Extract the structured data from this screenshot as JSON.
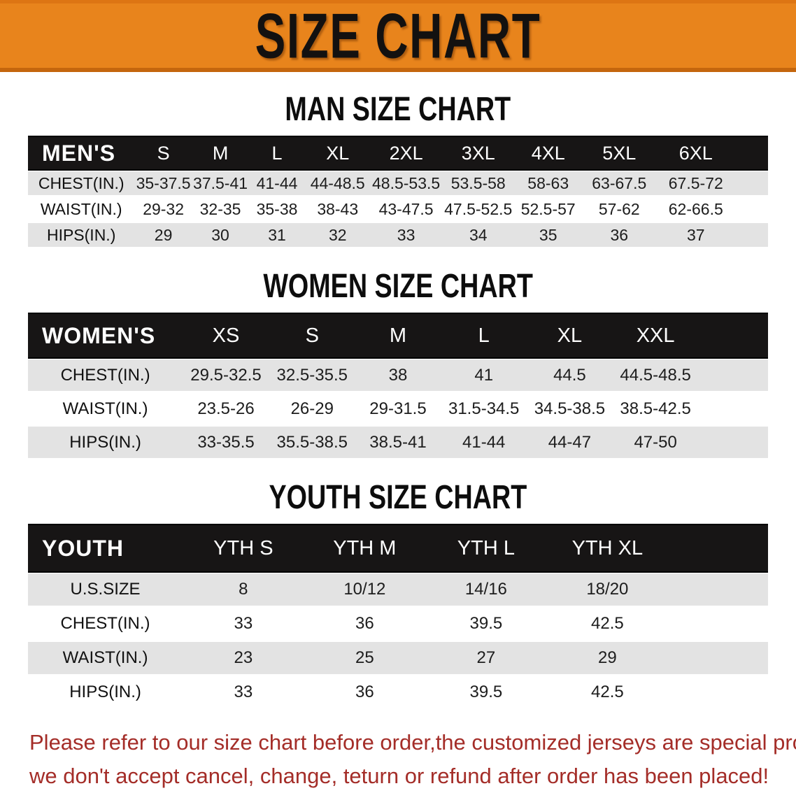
{
  "banner": {
    "title": "SIZE CHART"
  },
  "sections": [
    {
      "heading": "MAN SIZE CHART",
      "table": {
        "corner_label": "MEN'S",
        "columns": [
          "S",
          "M",
          "L",
          "XL",
          "2XL",
          "3XL",
          "4XL",
          "5XL",
          "6XL"
        ],
        "rows": [
          {
            "label": "CHEST(IN.)",
            "values": [
              "35-37.5",
              "37.5-41",
              "41-44",
              "44-48.5",
              "48.5-53.5",
              "53.5-58",
              "58-63",
              "63-67.5",
              "67.5-72"
            ]
          },
          {
            "label": "WAIST(IN.)",
            "values": [
              "29-32",
              "32-35",
              "35-38",
              "38-43",
              "43-47.5",
              "47.5-52.5",
              "52.5-57",
              "57-62",
              "62-66.5"
            ]
          },
          {
            "label": "HIPS(IN.)",
            "values": [
              "29",
              "30",
              "31",
              "32",
              "33",
              "34",
              "35",
              "36",
              "37"
            ]
          }
        ]
      }
    },
    {
      "heading": "WOMEN SIZE CHART",
      "table": {
        "corner_label": "WOMEN'S",
        "columns": [
          "XS",
          "S",
          "M",
          "L",
          "XL",
          "XXL"
        ],
        "rows": [
          {
            "label": "CHEST(IN.)",
            "values": [
              "29.5-32.5",
              "32.5-35.5",
              "38",
              "41",
              "44.5",
              "44.5-48.5"
            ]
          },
          {
            "label": "WAIST(IN.)",
            "values": [
              "23.5-26",
              "26-29",
              "29-31.5",
              "31.5-34.5",
              "34.5-38.5",
              "38.5-42.5"
            ]
          },
          {
            "label": "HIPS(IN.)",
            "values": [
              "33-35.5",
              "35.5-38.5",
              "38.5-41",
              "41-44",
              "44-47",
              "47-50"
            ]
          }
        ]
      }
    },
    {
      "heading": "YOUTH SIZE CHART",
      "table": {
        "corner_label": "YOUTH",
        "columns": [
          "YTH S",
          "YTH M",
          "YTH L",
          "YTH XL"
        ],
        "rows": [
          {
            "label": "U.S.SIZE",
            "values": [
              "8",
              "10/12",
              "14/16",
              "18/20"
            ]
          },
          {
            "label": "CHEST(IN.)",
            "values": [
              "33",
              "36",
              "39.5",
              "42.5"
            ]
          },
          {
            "label": "WAIST(IN.)",
            "values": [
              "23",
              "25",
              "27",
              "29"
            ]
          },
          {
            "label": "HIPS(IN.)",
            "values": [
              "33",
              "36",
              "39.5",
              "42.5"
            ]
          }
        ]
      }
    }
  ],
  "footer": {
    "line1": "Please refer to our size chart before order,the customized jerseys are special products,",
    "line2": "we don't accept cancel, change, teturn or refund after order has been placed!"
  },
  "colors": {
    "banner_orange": "#E8841C",
    "banner_title_black": "#131110",
    "header_bar_black": "#171515",
    "row_gray": "#E3E3E3",
    "row_white": "#FFFFFF",
    "footer_red": "#A42D28"
  }
}
